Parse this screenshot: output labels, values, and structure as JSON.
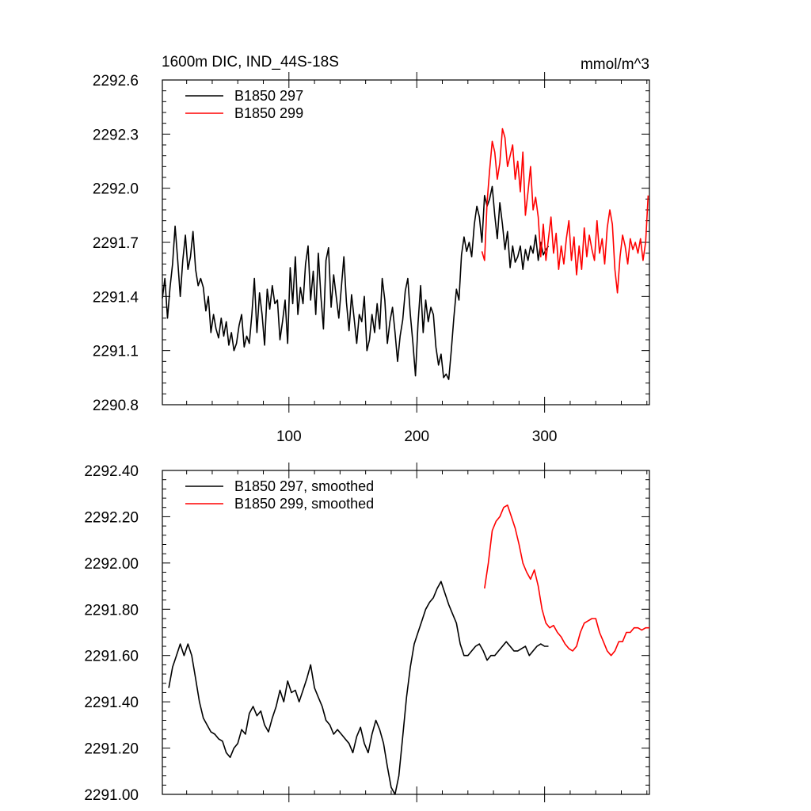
{
  "chart_data": [
    {
      "type": "line",
      "title": "1600m DIC, IND_44S-18S",
      "units": "mmol/m^3",
      "xlabel": "",
      "ylabel": "",
      "xlim": [
        1,
        382
      ],
      "ylim": [
        2290.8,
        2292.6
      ],
      "xticks": [
        100,
        200,
        300
      ],
      "yticks": [
        2290.8,
        2291.1,
        2291.4,
        2291.7,
        2292.0,
        2292.3,
        2292.6
      ],
      "ytick_labels": [
        "2290.8",
        "2291.1",
        "2291.4",
        "2291.7",
        "2292.0",
        "2292.3",
        "2292.6"
      ],
      "legend_position": "top-left",
      "series": [
        {
          "name": "B1850 297",
          "color": "#000000",
          "x": [
            1,
            3,
            5,
            7,
            9,
            11,
            13,
            15,
            17,
            19,
            21,
            23,
            25,
            27,
            29,
            31,
            33,
            35,
            37,
            39,
            41,
            43,
            45,
            47,
            49,
            51,
            53,
            55,
            57,
            59,
            61,
            63,
            65,
            67,
            69,
            71,
            73,
            75,
            77,
            79,
            81,
            83,
            85,
            87,
            89,
            91,
            93,
            95,
            97,
            99,
            101,
            103,
            105,
            107,
            109,
            111,
            113,
            115,
            117,
            119,
            121,
            123,
            125,
            127,
            129,
            131,
            133,
            135,
            137,
            139,
            141,
            143,
            145,
            147,
            149,
            151,
            153,
            155,
            157,
            159,
            161,
            163,
            165,
            167,
            169,
            171,
            173,
            175,
            177,
            179,
            181,
            183,
            185,
            187,
            189,
            191,
            193,
            195,
            197,
            199,
            201,
            203,
            205,
            207,
            209,
            211,
            213,
            215,
            217,
            219,
            221,
            223,
            225,
            227,
            229,
            231,
            233,
            235,
            237,
            239,
            241,
            243,
            245,
            247,
            249,
            251,
            253,
            255,
            257,
            259,
            261,
            263,
            265,
            267,
            269,
            271,
            273,
            275,
            277,
            279,
            281,
            283,
            285,
            287,
            289,
            291,
            293,
            295,
            297,
            299,
            301,
            303
          ],
          "values": [
            2291.39,
            2291.5,
            2291.28,
            2291.45,
            2291.58,
            2291.79,
            2291.6,
            2291.4,
            2291.6,
            2291.74,
            2291.55,
            2291.62,
            2291.76,
            2291.55,
            2291.46,
            2291.5,
            2291.45,
            2291.32,
            2291.4,
            2291.2,
            2291.3,
            2291.22,
            2291.17,
            2291.28,
            2291.18,
            2291.26,
            2291.13,
            2291.2,
            2291.1,
            2291.14,
            2291.24,
            2291.3,
            2291.12,
            2291.18,
            2291.14,
            2291.3,
            2291.5,
            2291.2,
            2291.42,
            2291.3,
            2291.13,
            2291.44,
            2291.33,
            2291.46,
            2291.36,
            2291.38,
            2291.16,
            2291.26,
            2291.38,
            2291.14,
            2291.56,
            2291.36,
            2291.62,
            2291.3,
            2291.45,
            2291.36,
            2291.58,
            2291.68,
            2291.38,
            2291.54,
            2291.3,
            2291.64,
            2291.4,
            2291.22,
            2291.6,
            2291.67,
            2291.34,
            2291.52,
            2291.4,
            2291.28,
            2291.45,
            2291.62,
            2291.37,
            2291.21,
            2291.41,
            2291.28,
            2291.14,
            2291.3,
            2291.26,
            2291.4,
            2291.1,
            2291.16,
            2291.3,
            2291.2,
            2291.36,
            2291.22,
            2291.5,
            2291.38,
            2291.14,
            2291.26,
            2291.34,
            2291.2,
            2291.04,
            2291.18,
            2291.27,
            2291.43,
            2291.5,
            2291.3,
            2291.14,
            2290.96,
            2291.25,
            2291.46,
            2291.2,
            2291.38,
            2291.26,
            2291.34,
            2291.3,
            2291.12,
            2291.02,
            2291.08,
            2290.95,
            2290.97,
            2290.94,
            2291.1,
            2291.28,
            2291.44,
            2291.38,
            2291.63,
            2291.73,
            2291.65,
            2291.7,
            2291.62,
            2291.8,
            2291.9,
            2291.84,
            2291.7,
            2291.96,
            2291.9,
            2291.94,
            2292.01,
            2291.85,
            2291.72,
            2291.92,
            2291.8,
            2291.66,
            2291.76,
            2291.56,
            2291.68,
            2291.59,
            2291.62,
            2291.68,
            2291.55,
            2291.66,
            2291.6,
            2291.68,
            2291.64,
            2291.74,
            2291.6,
            2291.7,
            2291.63,
            2291.66,
            2291.68
          ]
        },
        {
          "name": "B1850 299",
          "color": "#ff0000",
          "x": [
            251,
            253,
            255,
            257,
            259,
            261,
            263,
            265,
            267,
            269,
            271,
            273,
            275,
            277,
            279,
            281,
            283,
            285,
            287,
            289,
            291,
            293,
            295,
            297,
            299,
            301,
            303,
            305,
            307,
            309,
            311,
            313,
            315,
            317,
            319,
            321,
            323,
            325,
            327,
            329,
            331,
            333,
            335,
            337,
            339,
            341,
            343,
            345,
            347,
            349,
            351,
            353,
            355,
            357,
            359,
            361,
            363,
            365,
            367,
            369,
            371,
            373,
            375,
            377,
            379,
            381
          ],
          "values": [
            2291.65,
            2291.6,
            2291.92,
            2292.1,
            2292.26,
            2292.2,
            2292.05,
            2292.14,
            2292.33,
            2292.28,
            2292.12,
            2292.18,
            2292.24,
            2292.05,
            2292.15,
            2291.98,
            2292.2,
            2291.85,
            2291.98,
            2292.12,
            2291.88,
            2291.95,
            2291.84,
            2291.62,
            2291.8,
            2291.6,
            2291.72,
            2291.84,
            2291.64,
            2291.75,
            2291.55,
            2291.68,
            2291.58,
            2291.72,
            2291.82,
            2291.6,
            2291.73,
            2291.52,
            2291.68,
            2291.55,
            2291.78,
            2291.62,
            2291.74,
            2291.66,
            2291.6,
            2291.82,
            2291.64,
            2291.72,
            2291.58,
            2291.78,
            2291.88,
            2291.8,
            2291.55,
            2291.42,
            2291.62,
            2291.74,
            2291.68,
            2291.58,
            2291.72,
            2291.66,
            2291.7,
            2291.64,
            2291.72,
            2291.6,
            2291.7,
            2291.96
          ]
        }
      ]
    },
    {
      "type": "line",
      "title": "",
      "xlabel": "",
      "ylabel": "",
      "xlim": [
        1,
        382
      ],
      "ylim": [
        2291.0,
        2292.4
      ],
      "xticks": [
        100,
        200,
        300
      ],
      "yticks": [
        2291.0,
        2291.2,
        2291.4,
        2291.6,
        2291.8,
        2292.0,
        2292.2,
        2292.4
      ],
      "ytick_labels": [
        "2291.00",
        "2291.20",
        "2291.40",
        "2291.60",
        "2291.80",
        "2292.00",
        "2292.20",
        "2292.40"
      ],
      "legend_position": "top-left",
      "series": [
        {
          "name": "B1850 297, smoothed",
          "color": "#000000",
          "x": [
            6,
            9,
            12,
            15,
            18,
            21,
            24,
            27,
            30,
            33,
            36,
            39,
            42,
            45,
            48,
            51,
            54,
            57,
            60,
            63,
            66,
            69,
            72,
            75,
            78,
            81,
            84,
            87,
            90,
            93,
            96,
            99,
            102,
            105,
            108,
            111,
            114,
            117,
            120,
            123,
            126,
            129,
            132,
            135,
            138,
            141,
            144,
            147,
            150,
            153,
            156,
            159,
            162,
            165,
            168,
            171,
            174,
            177,
            180,
            183,
            186,
            189,
            192,
            195,
            198,
            201,
            204,
            207,
            210,
            213,
            216,
            219,
            222,
            225,
            228,
            231,
            234,
            237,
            240,
            243,
            246,
            249,
            252,
            255,
            258,
            261,
            264,
            267,
            270,
            273,
            276,
            279,
            282,
            285,
            288,
            291,
            294,
            297,
            300,
            303
          ],
          "values": [
            2291.46,
            2291.55,
            2291.6,
            2291.65,
            2291.6,
            2291.65,
            2291.6,
            2291.5,
            2291.4,
            2291.33,
            2291.3,
            2291.27,
            2291.26,
            2291.24,
            2291.23,
            2291.18,
            2291.16,
            2291.2,
            2291.22,
            2291.28,
            2291.26,
            2291.35,
            2291.38,
            2291.34,
            2291.36,
            2291.3,
            2291.27,
            2291.33,
            2291.38,
            2291.45,
            2291.4,
            2291.49,
            2291.44,
            2291.45,
            2291.4,
            2291.45,
            2291.5,
            2291.56,
            2291.46,
            2291.42,
            2291.38,
            2291.32,
            2291.3,
            2291.26,
            2291.28,
            2291.26,
            2291.24,
            2291.22,
            2291.18,
            2291.25,
            2291.29,
            2291.22,
            2291.18,
            2291.26,
            2291.32,
            2291.28,
            2291.22,
            2291.12,
            2291.03,
            2291.0,
            2291.08,
            2291.25,
            2291.42,
            2291.55,
            2291.65,
            2291.7,
            2291.75,
            2291.8,
            2291.83,
            2291.85,
            2291.89,
            2291.92,
            2291.87,
            2291.82,
            2291.78,
            2291.74,
            2291.65,
            2291.6,
            2291.6,
            2291.62,
            2291.64,
            2291.65,
            2291.62,
            2291.58,
            2291.6,
            2291.6,
            2291.62,
            2291.64,
            2291.66,
            2291.64,
            2291.62,
            2291.62,
            2291.63,
            2291.64,
            2291.6,
            2291.62,
            2291.64,
            2291.65,
            2291.64,
            2291.64
          ]
        },
        {
          "name": "B1850 299, smoothed",
          "color": "#ff0000",
          "x": [
            253,
            256,
            259,
            262,
            265,
            268,
            271,
            274,
            277,
            280,
            283,
            286,
            289,
            292,
            295,
            298,
            301,
            304,
            307,
            310,
            313,
            316,
            319,
            322,
            325,
            328,
            331,
            334,
            337,
            340,
            343,
            346,
            349,
            352,
            355,
            358,
            361,
            364,
            367,
            370,
            373,
            376,
            379,
            382
          ],
          "values": [
            2291.89,
            2292.0,
            2292.14,
            2292.18,
            2292.2,
            2292.24,
            2292.25,
            2292.2,
            2292.15,
            2292.08,
            2292.0,
            2291.96,
            2291.93,
            2291.97,
            2291.9,
            2291.8,
            2291.74,
            2291.72,
            2291.73,
            2291.7,
            2291.68,
            2291.65,
            2291.63,
            2291.62,
            2291.64,
            2291.7,
            2291.74,
            2291.75,
            2291.76,
            2291.76,
            2291.7,
            2291.66,
            2291.62,
            2291.6,
            2291.62,
            2291.66,
            2291.66,
            2291.7,
            2291.7,
            2291.72,
            2291.72,
            2291.71,
            2291.72,
            2291.72
          ]
        }
      ]
    }
  ]
}
